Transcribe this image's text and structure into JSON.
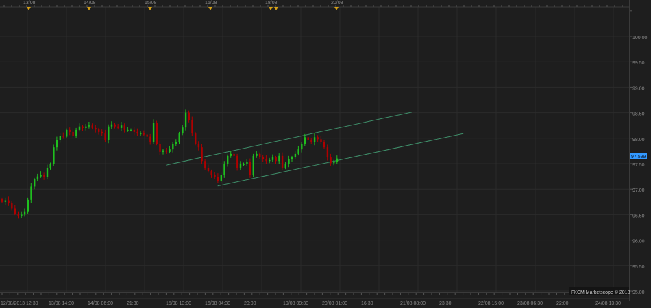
{
  "colors": {
    "background": "#1e1e1e",
    "grid": "#2b2b2b",
    "up": "#1fbf1f",
    "down": "#b00000",
    "channel": "#3f8f6a",
    "price_label": "#3399ff",
    "marker": "#d4a017"
  },
  "top_axis": {
    "labels": [
      "13/08",
      "14/08",
      "15/08",
      "16/08",
      "18/08",
      "20/08"
    ]
  },
  "watermark": "FXCM Marketscope © 2013",
  "chart_data": {
    "type": "candlestick",
    "y_ticks": [
      "100.00",
      "99.50",
      "99.00",
      "98.50",
      "98.00",
      "97.50",
      "97.00",
      "96.50",
      "96.00",
      "95.50",
      "95.00"
    ],
    "ylim": [
      95.0,
      100.0
    ],
    "x_ticks": [
      "12/08/2013 12:30",
      "13/08 14:30",
      "14/08 06:00",
      "21:30",
      "15/08 13:00",
      "16/08 04:30",
      "20:00",
      "19/08 09:30",
      "20/08 01:00",
      "16:30",
      "21/08 08:00",
      "23:30",
      "22/08 15:00",
      "23/08 06:30",
      "22:00",
      "24/08 13:30"
    ],
    "grid": true,
    "current_price": "97.599",
    "first_open": 96.8,
    "closes": [
      96.75,
      96.78,
      96.72,
      96.62,
      96.52,
      96.48,
      96.5,
      96.55,
      96.79,
      97.05,
      97.19,
      97.25,
      97.28,
      97.24,
      97.42,
      97.49,
      97.82,
      97.96,
      98.05,
      98.03,
      98.16,
      98.12,
      98.05,
      98.16,
      98.23,
      98.2,
      98.23,
      98.25,
      98.2,
      98.17,
      98.12,
      98.09,
      97.96,
      98.23,
      98.27,
      98.23,
      98.2,
      98.25,
      98.16,
      98.16,
      98.16,
      98.12,
      98.09,
      98.09,
      98.07,
      98.03,
      97.92,
      98.3,
      97.89,
      97.73,
      97.76,
      97.73,
      97.78,
      97.89,
      97.92,
      98.09,
      98.21,
      98.5,
      98.36,
      98.09,
      97.89,
      97.82,
      97.55,
      97.42,
      97.35,
      97.28,
      97.24,
      97.15,
      97.28,
      97.49,
      97.65,
      97.69,
      97.65,
      97.42,
      97.49,
      97.49,
      97.53,
      97.28,
      97.65,
      97.69,
      97.62,
      97.59,
      97.55,
      97.57,
      97.62,
      97.55,
      97.65,
      97.42,
      97.49,
      97.59,
      97.62,
      97.69,
      97.78,
      97.89,
      98.02,
      97.96,
      97.92,
      98.02,
      97.98,
      97.93,
      97.82,
      97.62,
      97.51,
      97.53,
      97.599
    ],
    "channel_lines": [
      {
        "start": {
          "time": "15/08 06:00",
          "price": 97.47
        },
        "end": {
          "time": "21/08 05:30",
          "price": 98.51
        }
      },
      {
        "start": {
          "time": "16/08 02:30",
          "price": 97.06
        },
        "end": {
          "time": "22/08 02:00",
          "price": 98.09
        }
      }
    ],
    "top_markers": [
      "13/08",
      "14/08",
      "15/08",
      "16/08",
      "18/08",
      "18/08",
      "20/08"
    ]
  }
}
